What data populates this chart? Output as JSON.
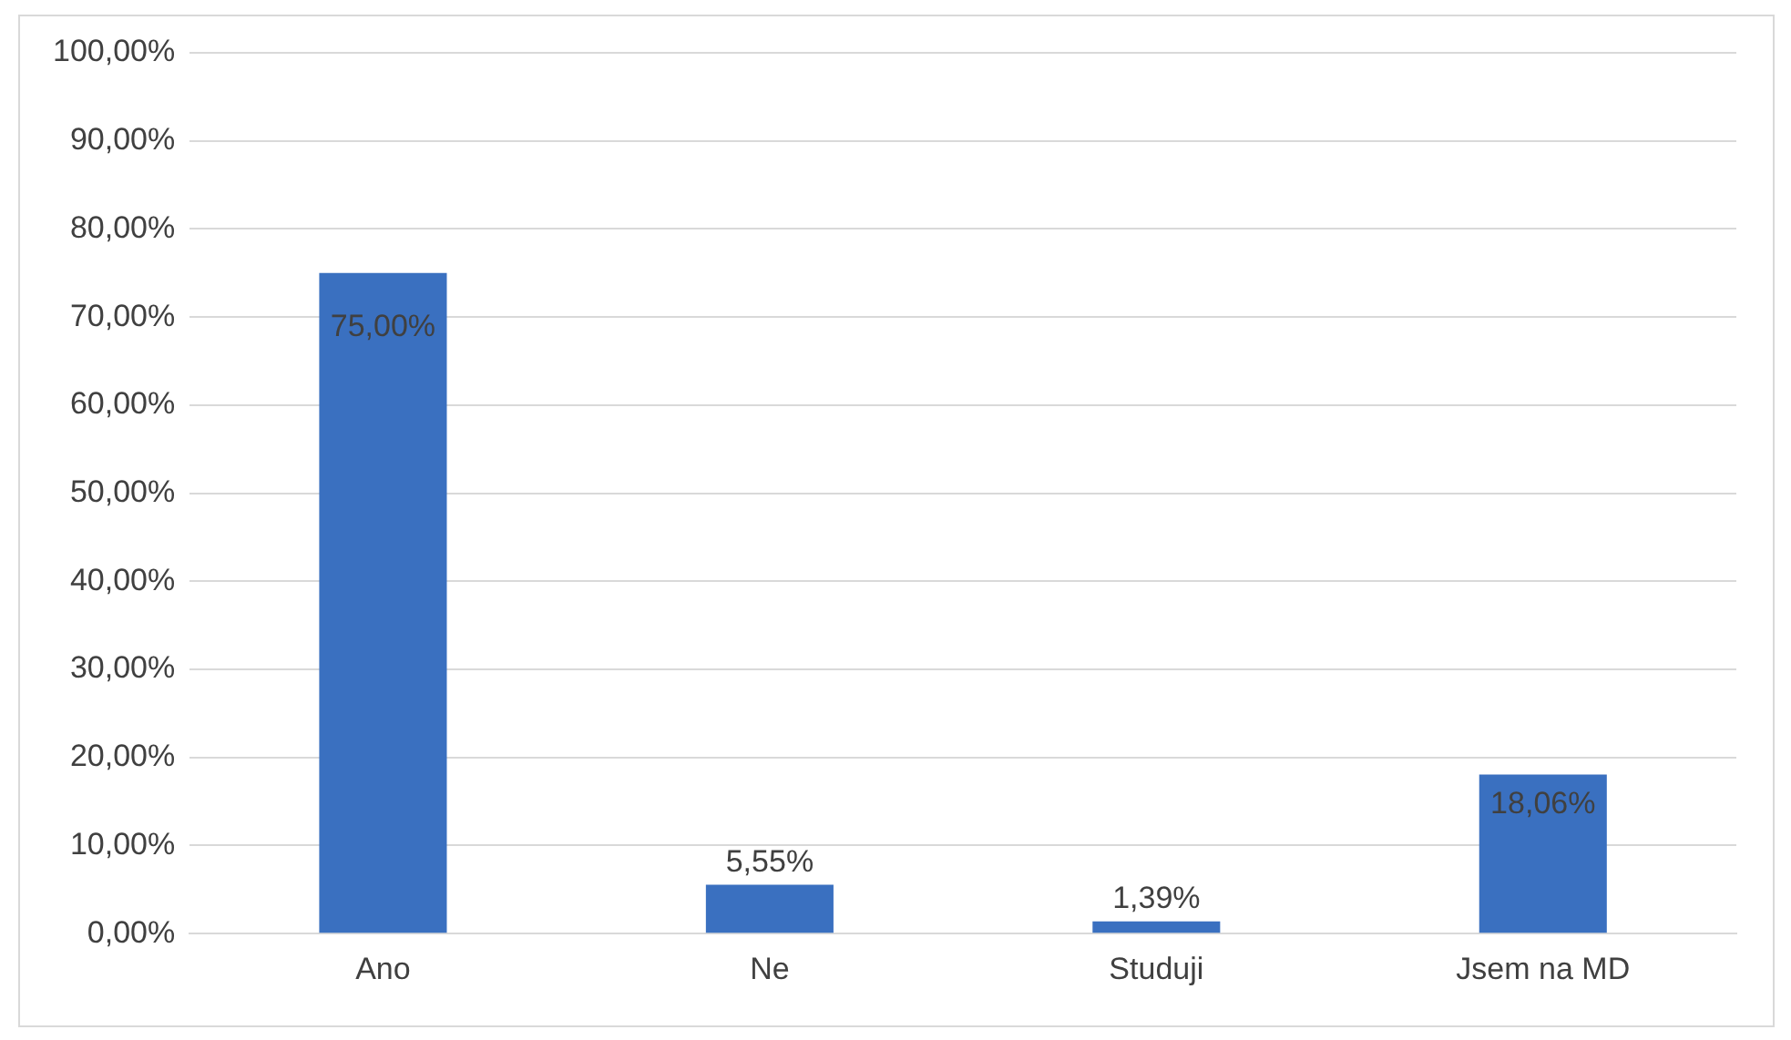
{
  "chart_data": {
    "type": "bar",
    "categories": [
      "Ano",
      "Ne",
      "Studuji",
      "Jsem na MD"
    ],
    "values": [
      75,
      5.55,
      1.39,
      18.06
    ],
    "value_labels": [
      "75,00%",
      "5,55%",
      "1,39%",
      "18,06%"
    ],
    "color": "#3a70c0",
    "ylim": [
      0,
      100
    ],
    "yticks": [
      {
        "value": 0,
        "label": "0,00%"
      },
      {
        "value": 10,
        "label": "10,00%"
      },
      {
        "value": 20,
        "label": "20,00%"
      },
      {
        "value": 30,
        "label": "30,00%"
      },
      {
        "value": 40,
        "label": "40,00%"
      },
      {
        "value": 50,
        "label": "50,00%"
      },
      {
        "value": 60,
        "label": "60,00%"
      },
      {
        "value": 70,
        "label": "70,00%"
      },
      {
        "value": 80,
        "label": "80,00%"
      },
      {
        "value": 90,
        "label": "90,00%"
      },
      {
        "value": 100,
        "label": "100,00%"
      }
    ],
    "grid": "y",
    "legend": false
  }
}
